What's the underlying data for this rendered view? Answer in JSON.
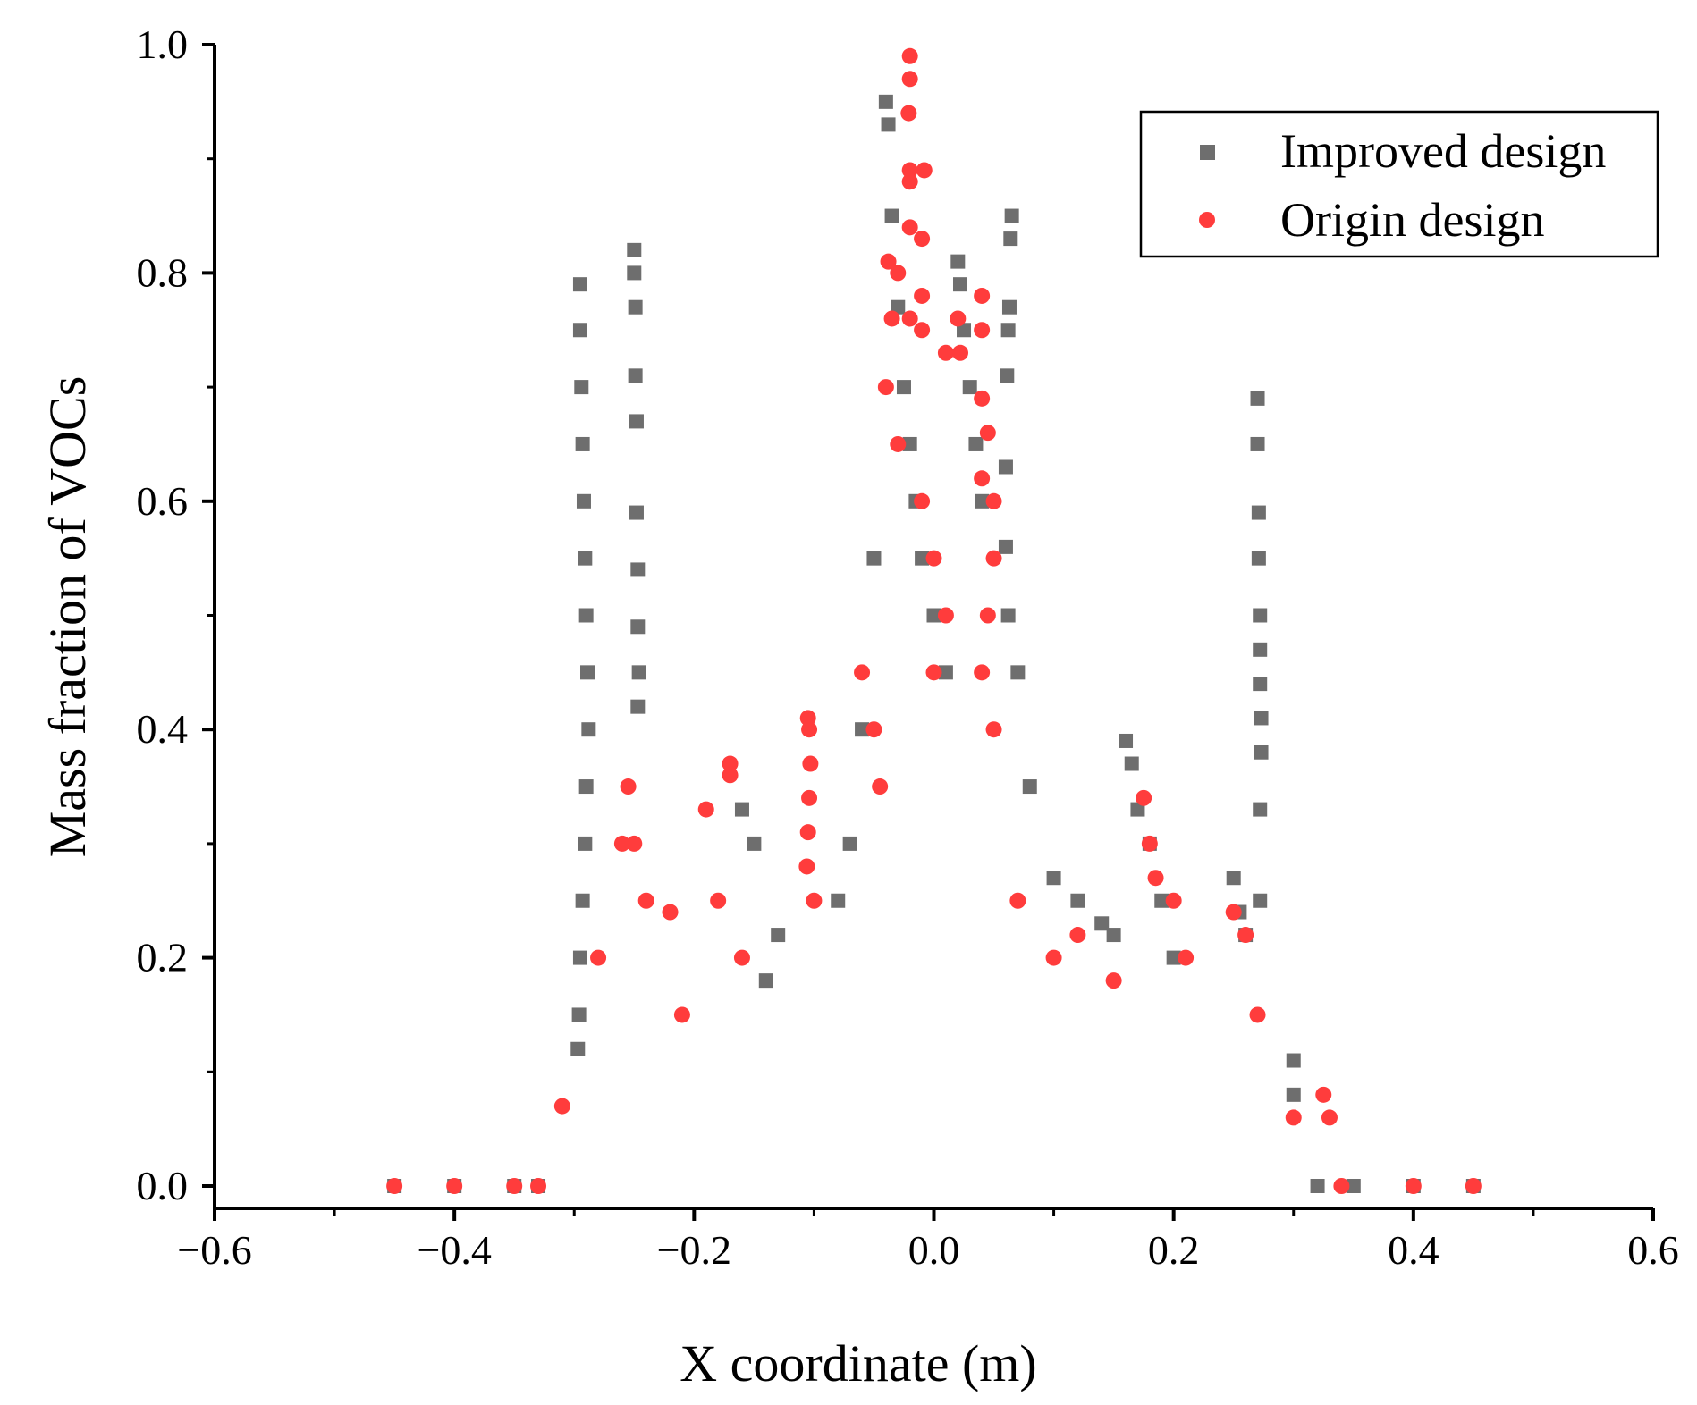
{
  "chart_data": {
    "type": "scatter",
    "title": "",
    "xlabel": "X coordinate (m)",
    "ylabel": "Mass fraction of VOCs",
    "xlim": [
      -0.6,
      0.6
    ],
    "ylim": [
      0.0,
      1.0
    ],
    "x_ticks": [
      -0.6,
      -0.4,
      -0.2,
      0.0,
      0.2,
      0.4,
      0.6
    ],
    "x_tick_labels": [
      "−0.6",
      "−0.4",
      "−0.2",
      "0.0",
      "0.2",
      "0.4",
      "0.6"
    ],
    "y_ticks": [
      0.0,
      0.2,
      0.4,
      0.6,
      0.8,
      1.0
    ],
    "y_tick_labels": [
      "0.0",
      "0.2",
      "0.4",
      "0.6",
      "0.8",
      "1.0"
    ],
    "grid": false,
    "legend_position": "top-right",
    "series": [
      {
        "name": "Improved design",
        "marker": "square",
        "color": "#6e6e6e",
        "points": [
          [
            -0.45,
            0.0
          ],
          [
            -0.4,
            0.0
          ],
          [
            -0.35,
            0.0
          ],
          [
            -0.33,
            0.0
          ],
          [
            -0.295,
            0.79
          ],
          [
            -0.295,
            0.75
          ],
          [
            -0.294,
            0.7
          ],
          [
            -0.293,
            0.65
          ],
          [
            -0.292,
            0.6
          ],
          [
            -0.291,
            0.55
          ],
          [
            -0.29,
            0.5
          ],
          [
            -0.289,
            0.45
          ],
          [
            -0.288,
            0.4
          ],
          [
            -0.29,
            0.35
          ],
          [
            -0.291,
            0.3
          ],
          [
            -0.293,
            0.25
          ],
          [
            -0.295,
            0.2
          ],
          [
            -0.296,
            0.15
          ],
          [
            -0.297,
            0.12
          ],
          [
            -0.25,
            0.82
          ],
          [
            -0.25,
            0.8
          ],
          [
            -0.249,
            0.77
          ],
          [
            -0.249,
            0.71
          ],
          [
            -0.248,
            0.67
          ],
          [
            -0.248,
            0.59
          ],
          [
            -0.247,
            0.54
          ],
          [
            -0.247,
            0.49
          ],
          [
            -0.246,
            0.45
          ],
          [
            -0.247,
            0.42
          ],
          [
            -0.16,
            0.33
          ],
          [
            -0.15,
            0.3
          ],
          [
            -0.14,
            0.18
          ],
          [
            -0.13,
            0.22
          ],
          [
            -0.08,
            0.25
          ],
          [
            -0.07,
            0.3
          ],
          [
            -0.06,
            0.4
          ],
          [
            -0.05,
            0.55
          ],
          [
            -0.04,
            0.95
          ],
          [
            -0.038,
            0.93
          ],
          [
            -0.035,
            0.85
          ],
          [
            -0.03,
            0.77
          ],
          [
            -0.025,
            0.7
          ],
          [
            -0.02,
            0.65
          ],
          [
            -0.015,
            0.6
          ],
          [
            -0.01,
            0.55
          ],
          [
            0.0,
            0.5
          ],
          [
            0.01,
            0.45
          ],
          [
            0.02,
            0.81
          ],
          [
            0.022,
            0.79
          ],
          [
            0.025,
            0.75
          ],
          [
            0.03,
            0.7
          ],
          [
            0.035,
            0.65
          ],
          [
            0.04,
            0.6
          ],
          [
            0.065,
            0.85
          ],
          [
            0.064,
            0.83
          ],
          [
            0.063,
            0.77
          ],
          [
            0.062,
            0.75
          ],
          [
            0.061,
            0.71
          ],
          [
            0.06,
            0.63
          ],
          [
            0.06,
            0.56
          ],
          [
            0.062,
            0.5
          ],
          [
            0.07,
            0.45
          ],
          [
            0.08,
            0.35
          ],
          [
            0.1,
            0.27
          ],
          [
            0.12,
            0.25
          ],
          [
            0.14,
            0.23
          ],
          [
            0.15,
            0.22
          ],
          [
            0.16,
            0.39
          ],
          [
            0.165,
            0.37
          ],
          [
            0.17,
            0.33
          ],
          [
            0.18,
            0.3
          ],
          [
            0.19,
            0.25
          ],
          [
            0.2,
            0.2
          ],
          [
            0.25,
            0.27
          ],
          [
            0.255,
            0.24
          ],
          [
            0.26,
            0.22
          ],
          [
            0.27,
            0.69
          ],
          [
            0.27,
            0.65
          ],
          [
            0.271,
            0.59
          ],
          [
            0.271,
            0.55
          ],
          [
            0.272,
            0.5
          ],
          [
            0.272,
            0.47
          ],
          [
            0.272,
            0.44
          ],
          [
            0.273,
            0.41
          ],
          [
            0.273,
            0.38
          ],
          [
            0.272,
            0.33
          ],
          [
            0.272,
            0.25
          ],
          [
            0.3,
            0.11
          ],
          [
            0.3,
            0.08
          ],
          [
            0.32,
            0.0
          ],
          [
            0.35,
            0.0
          ],
          [
            0.4,
            0.0
          ],
          [
            0.45,
            0.0
          ]
        ]
      },
      {
        "name": "Origin design",
        "marker": "circle",
        "color": "#ff3c3c",
        "points": [
          [
            -0.45,
            0.0
          ],
          [
            -0.4,
            0.0
          ],
          [
            -0.35,
            0.0
          ],
          [
            -0.33,
            0.0
          ],
          [
            -0.31,
            0.07
          ],
          [
            -0.28,
            0.2
          ],
          [
            -0.26,
            0.3
          ],
          [
            -0.255,
            0.35
          ],
          [
            -0.25,
            0.3
          ],
          [
            -0.24,
            0.25
          ],
          [
            -0.22,
            0.24
          ],
          [
            -0.21,
            0.15
          ],
          [
            -0.19,
            0.33
          ],
          [
            -0.18,
            0.25
          ],
          [
            -0.17,
            0.37
          ],
          [
            -0.17,
            0.36
          ],
          [
            -0.16,
            0.2
          ],
          [
            -0.105,
            0.41
          ],
          [
            -0.104,
            0.4
          ],
          [
            -0.103,
            0.37
          ],
          [
            -0.104,
            0.34
          ],
          [
            -0.105,
            0.31
          ],
          [
            -0.106,
            0.28
          ],
          [
            -0.1,
            0.25
          ],
          [
            -0.06,
            0.45
          ],
          [
            -0.05,
            0.4
          ],
          [
            -0.045,
            0.35
          ],
          [
            -0.02,
            0.99
          ],
          [
            -0.02,
            0.97
          ],
          [
            -0.021,
            0.94
          ],
          [
            -0.02,
            0.89
          ],
          [
            -0.02,
            0.88
          ],
          [
            -0.008,
            0.89
          ],
          [
            -0.01,
            0.83
          ],
          [
            -0.02,
            0.84
          ],
          [
            -0.038,
            0.81
          ],
          [
            -0.03,
            0.8
          ],
          [
            -0.01,
            0.78
          ],
          [
            -0.02,
            0.76
          ],
          [
            -0.035,
            0.76
          ],
          [
            -0.01,
            0.75
          ],
          [
            -0.04,
            0.7
          ],
          [
            -0.03,
            0.65
          ],
          [
            -0.01,
            0.6
          ],
          [
            0.0,
            0.55
          ],
          [
            0.01,
            0.5
          ],
          [
            0.0,
            0.45
          ],
          [
            0.02,
            0.76
          ],
          [
            0.022,
            0.73
          ],
          [
            0.01,
            0.73
          ],
          [
            0.04,
            0.78
          ],
          [
            0.04,
            0.75
          ],
          [
            0.04,
            0.69
          ],
          [
            0.045,
            0.66
          ],
          [
            0.04,
            0.62
          ],
          [
            0.05,
            0.6
          ],
          [
            0.05,
            0.55
          ],
          [
            0.045,
            0.5
          ],
          [
            0.04,
            0.45
          ],
          [
            0.05,
            0.4
          ],
          [
            0.07,
            0.25
          ],
          [
            0.1,
            0.2
          ],
          [
            0.12,
            0.22
          ],
          [
            0.15,
            0.18
          ],
          [
            0.175,
            0.34
          ],
          [
            0.18,
            0.3
          ],
          [
            0.185,
            0.27
          ],
          [
            0.2,
            0.25
          ],
          [
            0.21,
            0.2
          ],
          [
            0.25,
            0.24
          ],
          [
            0.26,
            0.22
          ],
          [
            0.27,
            0.15
          ],
          [
            0.3,
            0.06
          ],
          [
            0.325,
            0.08
          ],
          [
            0.33,
            0.06
          ],
          [
            0.34,
            0.0
          ],
          [
            0.4,
            0.0
          ],
          [
            0.45,
            0.0
          ]
        ]
      }
    ]
  }
}
